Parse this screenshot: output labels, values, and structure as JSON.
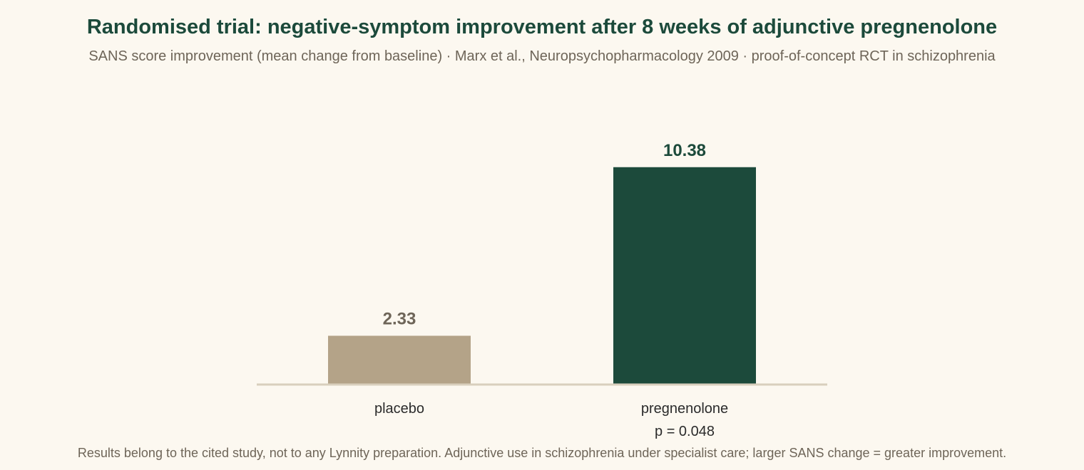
{
  "header": {
    "title": "Randomised trial: negative-symptom improvement after 8 weeks of adjunctive pregnenolone",
    "subtitle": "SANS score improvement (mean change from baseline) · Marx et al., Neuropsychopharmacology 2009 · proof-of-concept RCT in schizophrenia"
  },
  "footer": {
    "note": "Results belong to the cited study, not to any Lynnity preparation. Adjunctive use in schizophrenia under specialist care; larger SANS change = greater improvement."
  },
  "chart_data": {
    "type": "bar",
    "categories": [
      "placebo",
      "pregnenolone"
    ],
    "values": [
      2.33,
      10.38
    ],
    "value_labels": [
      "2.33",
      "10.38"
    ],
    "annotations": [
      "",
      "p = 0.048"
    ],
    "colors": [
      "#b4a388",
      "#1c4a3b"
    ],
    "label_colors": [
      "#6e6558",
      "#1c4a3b"
    ],
    "axis_color": "#d9cfbd",
    "ylim": [
      0,
      11.8
    ],
    "grid": false,
    "legend": "none",
    "title": "",
    "xlabel": "",
    "ylabel": ""
  }
}
